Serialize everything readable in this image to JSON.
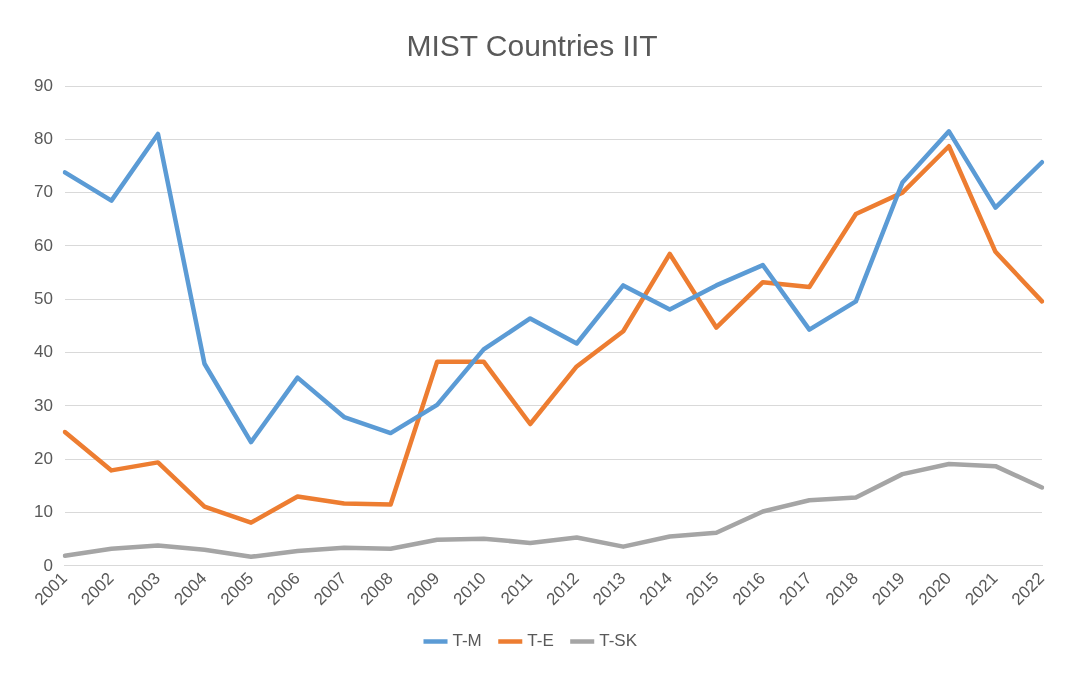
{
  "chart_data": {
    "type": "line",
    "title": "MIST Countries IIT",
    "categories": [
      "2001",
      "2002",
      "2003",
      "2004",
      "2005",
      "2006",
      "2007",
      "2008",
      "2009",
      "2010",
      "2011",
      "2012",
      "2013",
      "2014",
      "2015",
      "2016",
      "2017",
      "2018",
      "2019",
      "2020",
      "2021",
      "2022"
    ],
    "series": [
      {
        "name": "T-M",
        "color": "#5b9bd5",
        "values": [
          73.8,
          68.5,
          81,
          37.9,
          23.2,
          35.3,
          27.9,
          24.9,
          30.2,
          40.6,
          46.4,
          41.7,
          52.6,
          48.1,
          52.6,
          56.4,
          44.3,
          49.6,
          71.9,
          81.5,
          67.2,
          75.7
        ]
      },
      {
        "name": "T-E",
        "color": "#ed7d31",
        "values": [
          25.1,
          17.9,
          19.4,
          11.1,
          8.1,
          13,
          11.7,
          11.5,
          38.3,
          38.3,
          26.6,
          37.4,
          44,
          58.5,
          44.7,
          53.2,
          52.3,
          66,
          70,
          78.7,
          58.9,
          49.6
        ]
      },
      {
        "name": "T-SK",
        "color": "#a5a5a5",
        "values": [
          1.9,
          3.2,
          3.8,
          3,
          1.7,
          2.8,
          3.4,
          3.2,
          4.9,
          5.1,
          4.3,
          5.3,
          3.6,
          5.5,
          6.2,
          10.2,
          12.3,
          12.8,
          17.2,
          19.1,
          18.7,
          14.7
        ]
      }
    ],
    "ylim": [
      0,
      90
    ],
    "yticks": [
      0,
      10,
      20,
      30,
      40,
      50,
      60,
      70,
      80,
      90
    ],
    "grid": "y",
    "legend": "bottom",
    "marker": "none",
    "line_style": "solid"
  }
}
